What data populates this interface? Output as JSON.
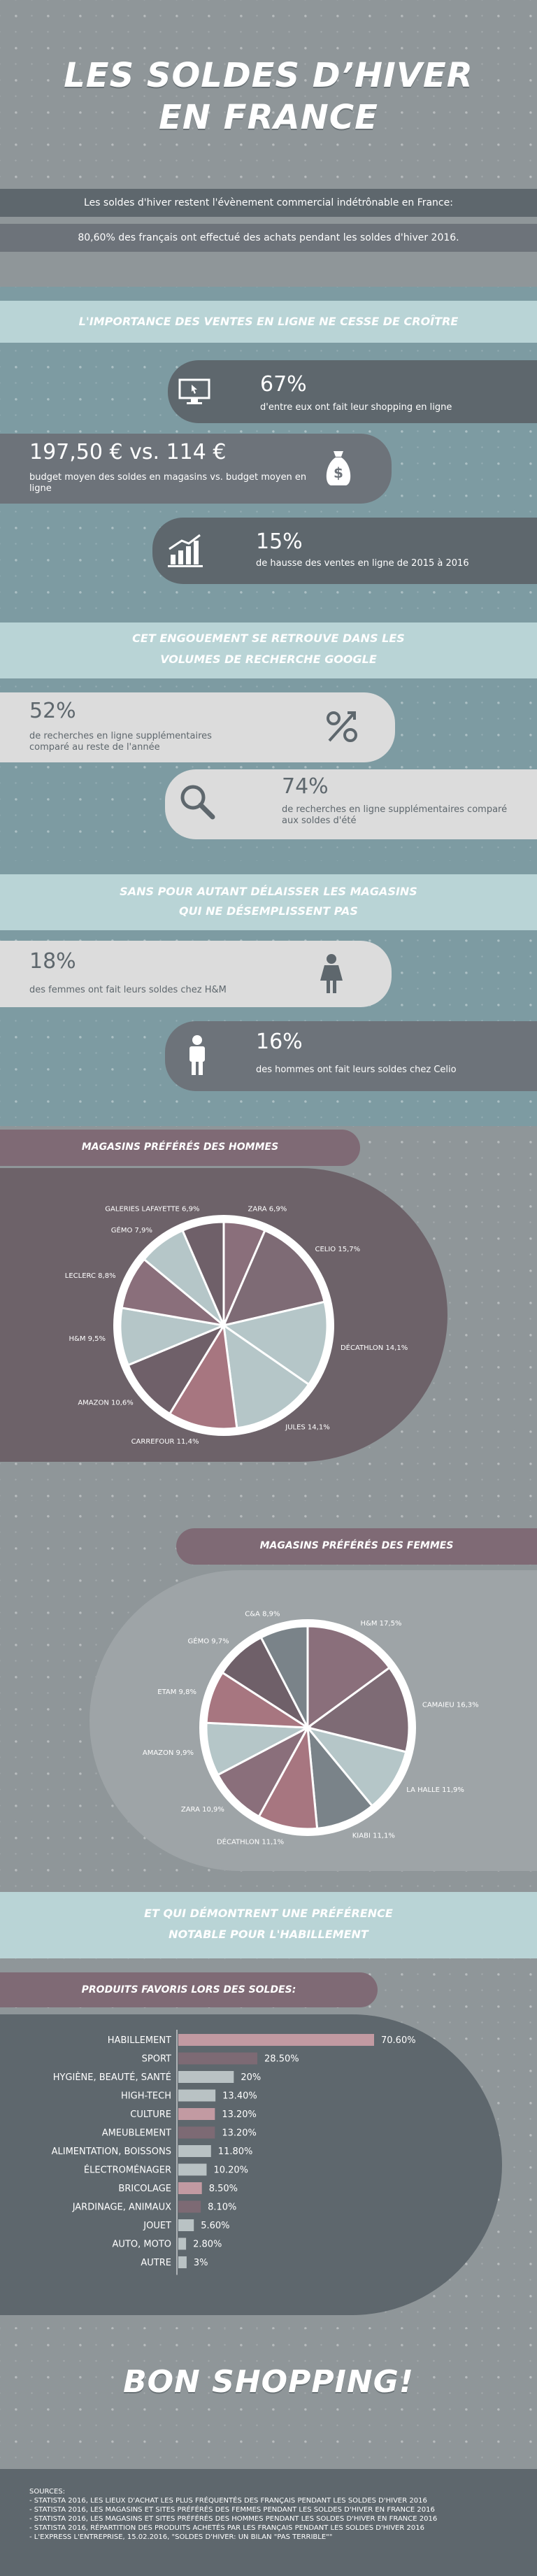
{
  "header": {
    "title_line1": "LES SOLDES D’HIVER",
    "title_line2": "EN FRANCE"
  },
  "intro": {
    "line1": "Les soldes d'hiver restent l'évènement commercial indétrônable en France:",
    "line2": "80,60% des français ont effectué des achats pendant les soldes d'hiver 2016."
  },
  "online": {
    "banner": "L'IMPORTANCE DES VENTES EN LIGNE NE CESSE DE CROÎTRE",
    "stat1_value": "67%",
    "stat1_text": "d'entre eux ont fait leur shopping en ligne",
    "stat2_value": "197,50 € vs. 114 €",
    "stat2_text": "budget moyen des soldes en magasins vs. budget moyen en ligne",
    "stat3_value": "15%",
    "stat3_text": "de hausse des ventes en ligne de 2015 à 2016"
  },
  "google": {
    "banner_line1": "CET ENGOUEMENT SE RETROUVE DANS LES",
    "banner_line2": "VOLUMES DE RECHERCHE GOOGLE",
    "stat1_value": "52%",
    "stat1_text": "de recherches en ligne supplémentaires comparé au reste de l'année",
    "stat2_value": "74%",
    "stat2_text": "de recherches en ligne supplémentaires comparé aux soldes d'été"
  },
  "stores": {
    "banner_line1": "SANS POUR AUTANT DÉLAISSER LES MAGASINS",
    "banner_line2": "QUI NE DÉSEMPLISSENT PAS",
    "stat1_value": "18%",
    "stat1_text": "des femmes ont fait leurs soldes chez H&M",
    "stat2_value": "16%",
    "stat2_text": "des hommes ont fait leurs soldes chez Celio"
  },
  "men_title": "MAGASINS PRÉFÉRÉS DES HOMMES",
  "women_title": "MAGASINS PRÉFÉRÉS DES FEMMES",
  "clothing": {
    "banner_line1": "ET QUI DÉMONTRENT UNE PRÉFÉRENCE",
    "banner_line2": "NOTABLE POUR L'HABILLEMENT"
  },
  "products_title": "PRODUITS FAVORIS LORS DES SOLDES:",
  "chart_data": [
    {
      "type": "pie",
      "title": "MAGASINS PRÉFÉRÉS DES HOMMES",
      "categories": [
        "ZARA",
        "CELIO",
        "DÉCATHLON",
        "JULES",
        "CARREFOUR",
        "AMAZON",
        "H&M",
        "LECLERC",
        "GÉMO",
        "GALERIES LAFAYETTE"
      ],
      "labels": [
        "ZARA 6,9%",
        "CELIO 15,7%",
        "DÉCATHLON 14,1%",
        "JULES 14,1%",
        "CARREFOUR 11,4%",
        "AMAZON 10,6%",
        "H&M 9,5%",
        "LECLERC 8,8%",
        "GÉMO 7,9%",
        "GALERIES LAFAYETTE 6,9%"
      ],
      "values": [
        6.9,
        15.7,
        14.1,
        14.1,
        11.4,
        10.6,
        9.5,
        8.8,
        7.9,
        6.9
      ],
      "colors": [
        "#8a6f7b",
        "#7e6b75",
        "#b5c6c8",
        "#b5c6c8",
        "#a77680",
        "#6f6069",
        "#b5c6c8",
        "#8a6f7b",
        "#b5c6c8",
        "#6f6069"
      ]
    },
    {
      "type": "pie",
      "title": "MAGASINS PRÉFÉRÉS DES FEMMES",
      "categories": [
        "H&M",
        "CAMAIEU",
        "LA HALLE",
        "KIABI",
        "DÉCATHLON",
        "ZARA",
        "AMAZON",
        "ETAM",
        "GÉMO",
        "C&A"
      ],
      "labels": [
        "H&M 17,5%",
        "CAMAIEU 16,3%",
        "LA HALLE 11,9%",
        "KIABI 11,1%",
        "DÉCATHLON 11,1%",
        "ZARA 10,9%",
        "AMAZON 9,9%",
        "ETAM 9,8%",
        "GÉMO 9,7%",
        "C&A 8,9%"
      ],
      "values": [
        17.5,
        16.3,
        11.9,
        11.1,
        11.1,
        10.9,
        9.9,
        9.8,
        9.7,
        8.9
      ],
      "colors": [
        "#8a6f7b",
        "#7e6b75",
        "#b5c6c8",
        "#7a8389",
        "#a77680",
        "#8a6f7b",
        "#b5c6c8",
        "#a77680",
        "#6f6069",
        "#7a8389"
      ]
    },
    {
      "type": "bar",
      "title": "PRODUITS FAVORIS LORS DES SOLDES:",
      "categories": [
        "HABILLEMENT",
        "SPORT",
        "HYGIÈNE, BEAUTÉ, SANTÉ",
        "HIGH-TECH",
        "CULTURE",
        "AMEUBLEMENT",
        "ALIMENTATION, BOISSONS",
        "ÉLECTROMÉNAGER",
        "BRICOLAGE",
        "JARDINAGE, ANIMAUX",
        "JOUET",
        "AUTO, MOTO",
        "AUTRE"
      ],
      "values": [
        70.6,
        28.5,
        20,
        13.4,
        13.2,
        13.2,
        11.8,
        10.2,
        8.5,
        8.1,
        5.6,
        2.8,
        3
      ],
      "labels": [
        "70.60%",
        "28.50%",
        "20%",
        "13.40%",
        "13.20%",
        "13.20%",
        "11.80%",
        "10.20%",
        "8.50%",
        "8.10%",
        "5.60%",
        "2.80%",
        "3%"
      ],
      "colors": [
        "#c29aa2",
        "#7d6a74",
        "#b9c2c4",
        "#b9c2c4",
        "#c29aa2",
        "#7d6a74",
        "#b9c2c4",
        "#b9c2c4",
        "#c29aa2",
        "#7d6a74",
        "#b9c2c4",
        "#b9c2c4",
        "#b9c2c4"
      ]
    }
  ],
  "footer": {
    "title": "BON SHOPPING!",
    "sources_title": "SOURCES:",
    "sources": [
      "- STATISTA 2016,  LES LIEUX D'ACHAT LES PLUS FRÉQUENTÉS DES FRANÇAIS PENDANT LES SOLDES D'HIVER 2016",
      "- STATISTA 2016,  LES MAGASINS ET SITES PRÉFÉRÉS DES FEMMES PENDANT LES SOLDES D'HIVER EN FRANCE 2016",
      "- STATISTA 2016,  LES MAGASINS ET SITES PRÉFÉRÉS DES HOMMES PENDANT LES SOLDES D'HIVER EN FRANCE 2016",
      "- STATISTA 2016,  RÉPARTITION DES PRODUITS ACHETÉS PAR LES FRANÇAIS PENDANT LES SOLDES D'HIVER 2016",
      "- L'EXPRESS L'ENTREPRISE, 15.02.2016,  \"SOLDES D'HIVER: UN BILAN \"PAS TERRIBLE\"\""
    ]
  }
}
